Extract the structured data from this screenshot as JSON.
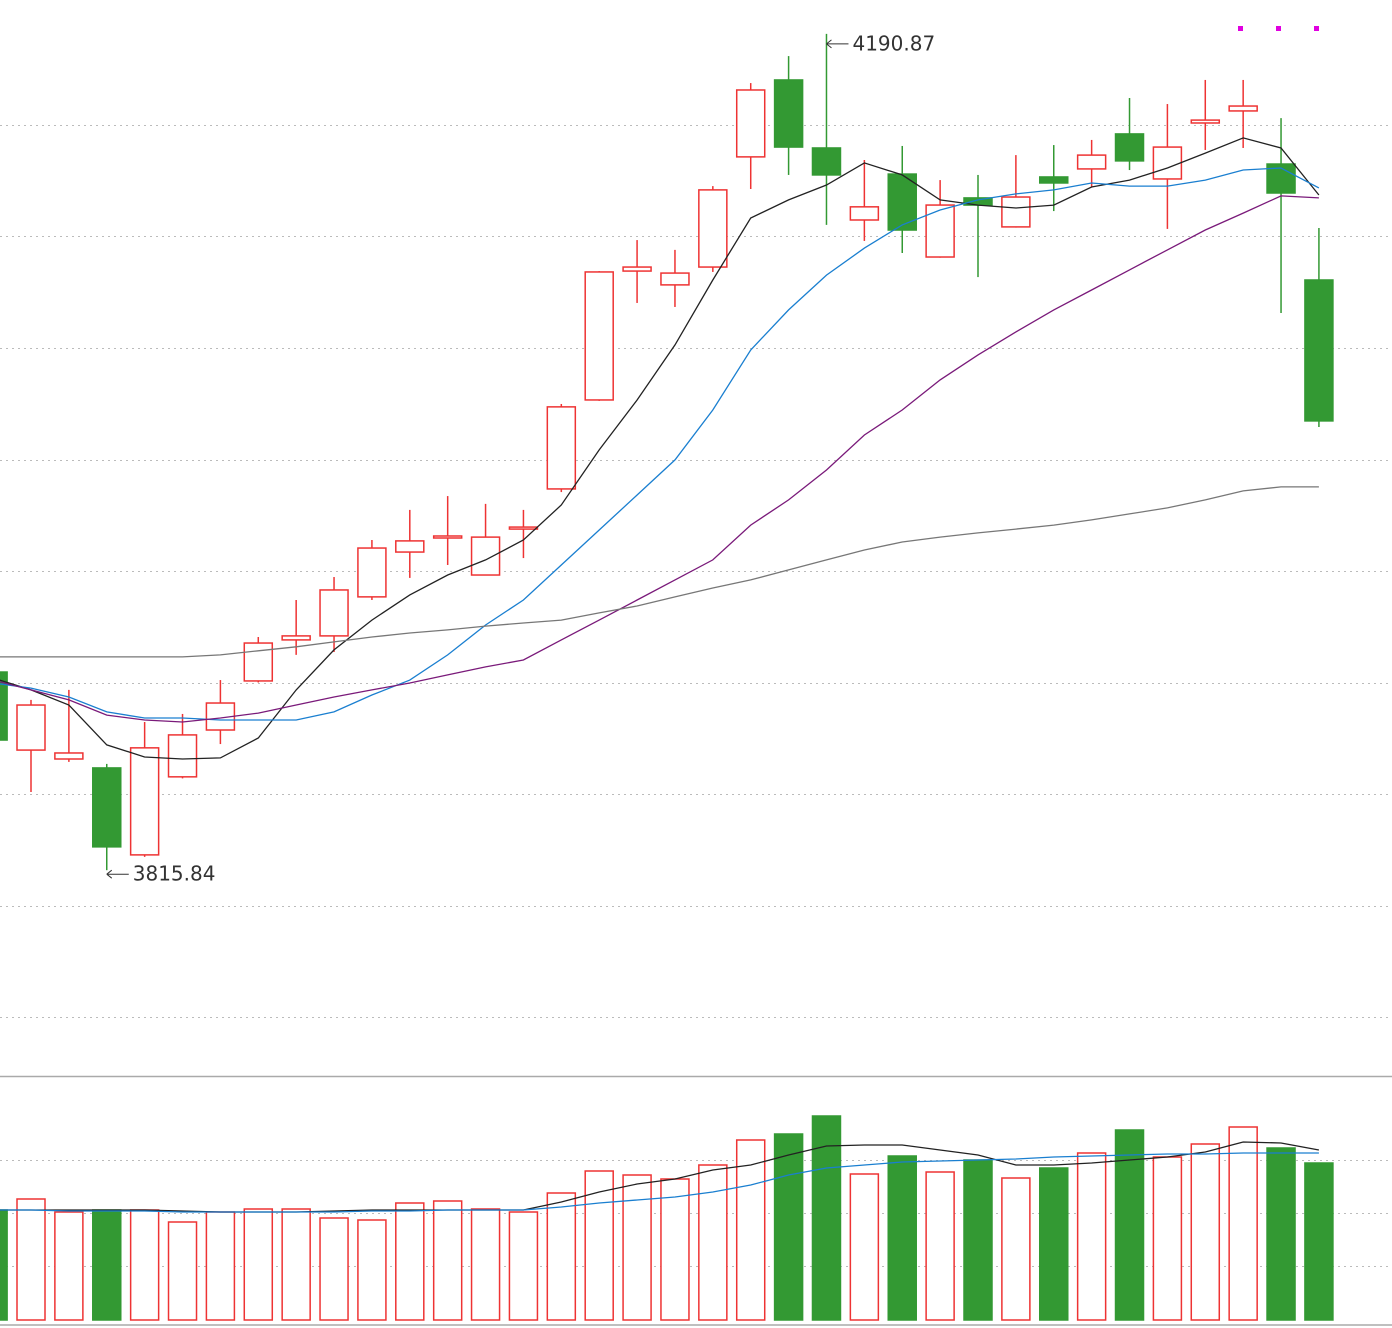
{
  "chart_data": {
    "type": "candlestick",
    "categories": [
      null,
      null,
      null,
      null,
      null,
      null,
      null,
      null,
      null,
      null,
      null,
      null,
      null,
      null,
      null,
      null,
      null,
      null,
      null,
      null,
      null,
      null,
      null,
      null,
      null,
      null,
      null,
      null,
      null,
      null,
      null,
      null,
      null,
      null,
      null,
      null
    ],
    "open": [
      3904.7,
      3869.7,
      3865.7,
      3861.7,
      3822.7,
      3857.7,
      3878.7,
      3900.7,
      3919.1,
      3920.9,
      3938.4,
      3958.5,
      3964.8,
      3948.2,
      3969.3,
      3986.8,
      4026.7,
      4084.5,
      4078.3,
      4086.3,
      4135.7,
      4170.2,
      4139.7,
      4107.4,
      4128.0,
      4090.8,
      4117.3,
      4104.3,
      4126.7,
      4130.3,
      4146.0,
      4125.8,
      4150.9,
      4156.3,
      4132.5,
      4080.5
    ],
    "high": [
      3906.5,
      3892.2,
      3896.7,
      3863.5,
      3882.3,
      3885.9,
      3901.1,
      3920.4,
      3937.0,
      3947.3,
      3963.9,
      3977.4,
      3983.6,
      3980.1,
      3977.4,
      4024.9,
      4084.5,
      4098.4,
      4094.0,
      4122.6,
      4168.8,
      4180.9,
      4190.87,
      4134.3,
      4140.6,
      4125.3,
      4127.6,
      4136.5,
      4141.0,
      4143.3,
      4162.1,
      4159.4,
      4170.2,
      4170.2,
      4153.1,
      4103.8
    ],
    "low": [
      3873.3,
      3850.9,
      3864.4,
      3815.84,
      3821.8,
      3857.0,
      3872.4,
      3900.0,
      3912.4,
      3913.7,
      3937.0,
      3946.9,
      3952.7,
      3948.0,
      3955.8,
      3985.4,
      4026.3,
      4070.2,
      4068.4,
      4084.1,
      4121.3,
      4127.6,
      4105.2,
      4098.0,
      4092.6,
      4090.5,
      4081.8,
      4104.0,
      4111.4,
      4122.2,
      4129.8,
      4103.4,
      4138.8,
      4139.7,
      4065.7,
      4014.6
    ],
    "close": [
      3874.2,
      3889.9,
      3868.4,
      3826.3,
      3870.7,
      3876.5,
      3890.8,
      3917.7,
      3920.9,
      3941.5,
      3960.3,
      3963.5,
      3965.7,
      3965.2,
      3969.7,
      4023.6,
      4084.1,
      4086.3,
      4083.6,
      4120.9,
      4165.7,
      4140.1,
      4127.6,
      4113.3,
      4102.9,
      4114.1,
      4114.1,
      4117.7,
      4124.0,
      4136.5,
      4133.9,
      4140.1,
      4152.2,
      4158.5,
      4119.5,
      4017.3
    ],
    "up_color": "#ee3333",
    "down_color": "#339933",
    "ylim": [
      3723.55,
      4206.05
    ],
    "ygrid": [
      4150,
      4100,
      4050,
      4000,
      3950,
      3900,
      3850,
      3800,
      3750
    ],
    "series": [
      {
        "color": "#222222",
        "values": [
          3902.0,
          3896.7,
          3889.9,
          3872.0,
          3866.6,
          3865.7,
          3866.2,
          3875.1,
          3896.7,
          3914.6,
          3928.0,
          3939.3,
          3948.2,
          3955.0,
          3963.9,
          3979.6,
          4004.3,
          4026.7,
          4051.4,
          4080.5,
          4108.3,
          4116.4,
          4123.1,
          4133.0,
          4127.6,
          4116.4,
          4114.1,
          4112.8,
          4114.1,
          4122.2,
          4125.3,
          4130.7,
          4137.4,
          4144.2,
          4139.7,
          4118.6
        ]
      },
      {
        "color": "#1a7fd0",
        "values": [
          3899.8,
          3897.5,
          3893.5,
          3886.8,
          3884.1,
          3884.1,
          3883.2,
          3883.2,
          3883.2,
          3886.8,
          3894.4,
          3901.1,
          3912.4,
          3925.8,
          3937.0,
          3952.7,
          3968.4,
          3984.1,
          3999.8,
          4022.2,
          4049.1,
          4067.1,
          4082.7,
          4094.8,
          4105.2,
          4111.9,
          4116.4,
          4119.1,
          4120.9,
          4124.0,
          4122.6,
          4122.6,
          4125.3,
          4129.8,
          4130.7,
          4121.8
        ]
      },
      {
        "color": "#7a1a7a",
        "values": [
          3901.1,
          3896.7,
          3892.2,
          3885.4,
          3883.2,
          3882.3,
          3884.1,
          3886.3,
          3889.9,
          3893.5,
          3896.7,
          3899.8,
          3903.4,
          3907.0,
          3910.1,
          3919.1,
          3928.0,
          3937.0,
          3946.0,
          3955.0,
          3970.6,
          3981.9,
          3995.3,
          4011.0,
          4022.2,
          4035.7,
          4046.9,
          4057.2,
          4067.1,
          4076.0,
          4085.0,
          4094.0,
          4102.9,
          4110.5,
          4118.2,
          4117.3
        ]
      },
      {
        "color": "#777777",
        "values": [
          3911.5,
          3911.5,
          3911.5,
          3911.5,
          3911.5,
          3911.5,
          3912.4,
          3914.2,
          3916.0,
          3918.2,
          3920.4,
          3922.2,
          3923.6,
          3925.3,
          3926.7,
          3928.0,
          3931.2,
          3934.3,
          3938.4,
          3942.4,
          3946.0,
          3950.5,
          3955.0,
          3959.4,
          3963.0,
          3965.2,
          3967.1,
          3968.8,
          3970.6,
          3972.9,
          3975.6,
          3978.3,
          3981.9,
          3985.9,
          3987.7,
          3987.7
        ]
      }
    ],
    "volume": {
      "ylim": [
        0,
        244
      ],
      "ygrid": [
        160,
        107,
        54
      ],
      "values": [
        110,
        121,
        108,
        110,
        110,
        98,
        108,
        111,
        111,
        102,
        100,
        117,
        119,
        111,
        108,
        127,
        149,
        145,
        141,
        155,
        180,
        186,
        204,
        146,
        164,
        148,
        160,
        142,
        152,
        167,
        190,
        163,
        176,
        193,
        172,
        157
      ],
      "series": [
        {
          "color": "#222222",
          "values": [
            110,
            110,
            110,
            110,
            110,
            109,
            108,
            108,
            108,
            109,
            110,
            110,
            110,
            110,
            110,
            118,
            128,
            136,
            141,
            150,
            155,
            165,
            174,
            175,
            175,
            170,
            165,
            155,
            155,
            157,
            160,
            163,
            168,
            178,
            177,
            170
          ]
        },
        {
          "color": "#1a7fd0",
          "values": [
            110,
            110,
            109,
            109,
            109,
            108,
            108,
            108,
            108,
            108,
            109,
            109,
            110,
            110,
            110,
            113,
            117,
            120,
            123,
            128,
            135,
            145,
            152,
            155,
            158,
            159,
            160,
            161,
            163,
            164,
            165,
            166,
            166,
            167,
            167,
            167
          ]
        }
      ]
    }
  }
}
